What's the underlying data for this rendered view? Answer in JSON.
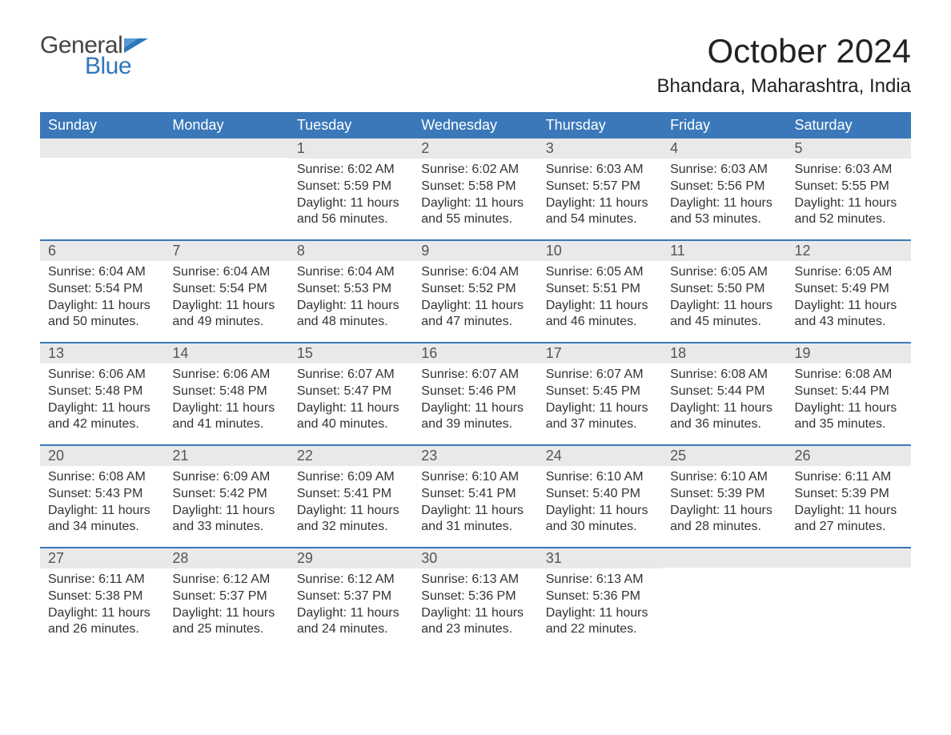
{
  "logo": {
    "text_general": "General",
    "text_blue": "Blue",
    "flag_color": "#2f76bb"
  },
  "title": "October 2024",
  "location": "Bhandara, Maharashtra, India",
  "colors": {
    "header_bg": "#3a78b9",
    "header_text": "#ffffff",
    "daynum_bg": "#e9e9e9",
    "body_text": "#333333",
    "week_border": "#3a78b9",
    "page_bg": "#ffffff"
  },
  "fonts": {
    "title_size": 42,
    "location_size": 24,
    "weekday_size": 18,
    "daynum_size": 18,
    "body_size": 16
  },
  "weekdays": [
    "Sunday",
    "Monday",
    "Tuesday",
    "Wednesday",
    "Thursday",
    "Friday",
    "Saturday"
  ],
  "weeks": [
    [
      {
        "day": "",
        "sunrise": "",
        "sunset": "",
        "daylight1": "",
        "daylight2": ""
      },
      {
        "day": "",
        "sunrise": "",
        "sunset": "",
        "daylight1": "",
        "daylight2": ""
      },
      {
        "day": "1",
        "sunrise": "Sunrise: 6:02 AM",
        "sunset": "Sunset: 5:59 PM",
        "daylight1": "Daylight: 11 hours",
        "daylight2": "and 56 minutes."
      },
      {
        "day": "2",
        "sunrise": "Sunrise: 6:02 AM",
        "sunset": "Sunset: 5:58 PM",
        "daylight1": "Daylight: 11 hours",
        "daylight2": "and 55 minutes."
      },
      {
        "day": "3",
        "sunrise": "Sunrise: 6:03 AM",
        "sunset": "Sunset: 5:57 PM",
        "daylight1": "Daylight: 11 hours",
        "daylight2": "and 54 minutes."
      },
      {
        "day": "4",
        "sunrise": "Sunrise: 6:03 AM",
        "sunset": "Sunset: 5:56 PM",
        "daylight1": "Daylight: 11 hours",
        "daylight2": "and 53 minutes."
      },
      {
        "day": "5",
        "sunrise": "Sunrise: 6:03 AM",
        "sunset": "Sunset: 5:55 PM",
        "daylight1": "Daylight: 11 hours",
        "daylight2": "and 52 minutes."
      }
    ],
    [
      {
        "day": "6",
        "sunrise": "Sunrise: 6:04 AM",
        "sunset": "Sunset: 5:54 PM",
        "daylight1": "Daylight: 11 hours",
        "daylight2": "and 50 minutes."
      },
      {
        "day": "7",
        "sunrise": "Sunrise: 6:04 AM",
        "sunset": "Sunset: 5:54 PM",
        "daylight1": "Daylight: 11 hours",
        "daylight2": "and 49 minutes."
      },
      {
        "day": "8",
        "sunrise": "Sunrise: 6:04 AM",
        "sunset": "Sunset: 5:53 PM",
        "daylight1": "Daylight: 11 hours",
        "daylight2": "and 48 minutes."
      },
      {
        "day": "9",
        "sunrise": "Sunrise: 6:04 AM",
        "sunset": "Sunset: 5:52 PM",
        "daylight1": "Daylight: 11 hours",
        "daylight2": "and 47 minutes."
      },
      {
        "day": "10",
        "sunrise": "Sunrise: 6:05 AM",
        "sunset": "Sunset: 5:51 PM",
        "daylight1": "Daylight: 11 hours",
        "daylight2": "and 46 minutes."
      },
      {
        "day": "11",
        "sunrise": "Sunrise: 6:05 AM",
        "sunset": "Sunset: 5:50 PM",
        "daylight1": "Daylight: 11 hours",
        "daylight2": "and 45 minutes."
      },
      {
        "day": "12",
        "sunrise": "Sunrise: 6:05 AM",
        "sunset": "Sunset: 5:49 PM",
        "daylight1": "Daylight: 11 hours",
        "daylight2": "and 43 minutes."
      }
    ],
    [
      {
        "day": "13",
        "sunrise": "Sunrise: 6:06 AM",
        "sunset": "Sunset: 5:48 PM",
        "daylight1": "Daylight: 11 hours",
        "daylight2": "and 42 minutes."
      },
      {
        "day": "14",
        "sunrise": "Sunrise: 6:06 AM",
        "sunset": "Sunset: 5:48 PM",
        "daylight1": "Daylight: 11 hours",
        "daylight2": "and 41 minutes."
      },
      {
        "day": "15",
        "sunrise": "Sunrise: 6:07 AM",
        "sunset": "Sunset: 5:47 PM",
        "daylight1": "Daylight: 11 hours",
        "daylight2": "and 40 minutes."
      },
      {
        "day": "16",
        "sunrise": "Sunrise: 6:07 AM",
        "sunset": "Sunset: 5:46 PM",
        "daylight1": "Daylight: 11 hours",
        "daylight2": "and 39 minutes."
      },
      {
        "day": "17",
        "sunrise": "Sunrise: 6:07 AM",
        "sunset": "Sunset: 5:45 PM",
        "daylight1": "Daylight: 11 hours",
        "daylight2": "and 37 minutes."
      },
      {
        "day": "18",
        "sunrise": "Sunrise: 6:08 AM",
        "sunset": "Sunset: 5:44 PM",
        "daylight1": "Daylight: 11 hours",
        "daylight2": "and 36 minutes."
      },
      {
        "day": "19",
        "sunrise": "Sunrise: 6:08 AM",
        "sunset": "Sunset: 5:44 PM",
        "daylight1": "Daylight: 11 hours",
        "daylight2": "and 35 minutes."
      }
    ],
    [
      {
        "day": "20",
        "sunrise": "Sunrise: 6:08 AM",
        "sunset": "Sunset: 5:43 PM",
        "daylight1": "Daylight: 11 hours",
        "daylight2": "and 34 minutes."
      },
      {
        "day": "21",
        "sunrise": "Sunrise: 6:09 AM",
        "sunset": "Sunset: 5:42 PM",
        "daylight1": "Daylight: 11 hours",
        "daylight2": "and 33 minutes."
      },
      {
        "day": "22",
        "sunrise": "Sunrise: 6:09 AM",
        "sunset": "Sunset: 5:41 PM",
        "daylight1": "Daylight: 11 hours",
        "daylight2": "and 32 minutes."
      },
      {
        "day": "23",
        "sunrise": "Sunrise: 6:10 AM",
        "sunset": "Sunset: 5:41 PM",
        "daylight1": "Daylight: 11 hours",
        "daylight2": "and 31 minutes."
      },
      {
        "day": "24",
        "sunrise": "Sunrise: 6:10 AM",
        "sunset": "Sunset: 5:40 PM",
        "daylight1": "Daylight: 11 hours",
        "daylight2": "and 30 minutes."
      },
      {
        "day": "25",
        "sunrise": "Sunrise: 6:10 AM",
        "sunset": "Sunset: 5:39 PM",
        "daylight1": "Daylight: 11 hours",
        "daylight2": "and 28 minutes."
      },
      {
        "day": "26",
        "sunrise": "Sunrise: 6:11 AM",
        "sunset": "Sunset: 5:39 PM",
        "daylight1": "Daylight: 11 hours",
        "daylight2": "and 27 minutes."
      }
    ],
    [
      {
        "day": "27",
        "sunrise": "Sunrise: 6:11 AM",
        "sunset": "Sunset: 5:38 PM",
        "daylight1": "Daylight: 11 hours",
        "daylight2": "and 26 minutes."
      },
      {
        "day": "28",
        "sunrise": "Sunrise: 6:12 AM",
        "sunset": "Sunset: 5:37 PM",
        "daylight1": "Daylight: 11 hours",
        "daylight2": "and 25 minutes."
      },
      {
        "day": "29",
        "sunrise": "Sunrise: 6:12 AM",
        "sunset": "Sunset: 5:37 PM",
        "daylight1": "Daylight: 11 hours",
        "daylight2": "and 24 minutes."
      },
      {
        "day": "30",
        "sunrise": "Sunrise: 6:13 AM",
        "sunset": "Sunset: 5:36 PM",
        "daylight1": "Daylight: 11 hours",
        "daylight2": "and 23 minutes."
      },
      {
        "day": "31",
        "sunrise": "Sunrise: 6:13 AM",
        "sunset": "Sunset: 5:36 PM",
        "daylight1": "Daylight: 11 hours",
        "daylight2": "and 22 minutes."
      },
      {
        "day": "",
        "sunrise": "",
        "sunset": "",
        "daylight1": "",
        "daylight2": ""
      },
      {
        "day": "",
        "sunrise": "",
        "sunset": "",
        "daylight1": "",
        "daylight2": ""
      }
    ]
  ]
}
